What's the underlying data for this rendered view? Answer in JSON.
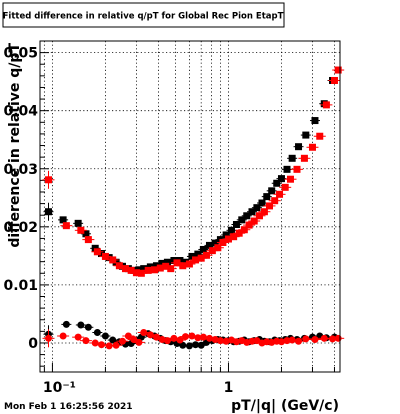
{
  "chart_data": {
    "type": "scatter",
    "title": "Fitted difference in relative q/pT for Global Rec Pion EtapT",
    "xlabel": "pT/|q| (GeV/c)",
    "ylabel": "difference in relative q/pT",
    "xscale": "log",
    "xlim": [
      0.085,
      4.3
    ],
    "ylim": [
      -0.005,
      0.052
    ],
    "grid": true,
    "x_tick_labels": [
      "10⁻¹",
      "1"
    ],
    "x_tick_values": [
      0.1,
      1
    ],
    "y_tick_labels": [
      "0",
      "0.01",
      "0.02",
      "0.03",
      "0.04",
      "0.05"
    ],
    "y_tick_values": [
      0,
      0.01,
      0.02,
      0.03,
      0.04,
      0.05
    ],
    "series": [
      {
        "color": "#000000",
        "marker": "square",
        "x": [
          0.095,
          0.115,
          0.14,
          0.155,
          0.175,
          0.19,
          0.21,
          0.23,
          0.25,
          0.27,
          0.29,
          0.31,
          0.33,
          0.36,
          0.39,
          0.42,
          0.45,
          0.49,
          0.53,
          0.57,
          0.62,
          0.67,
          0.72,
          0.78,
          0.84,
          0.9,
          0.97,
          1.04,
          1.11,
          1.19,
          1.27,
          1.36,
          1.45,
          1.55,
          1.65,
          1.76,
          1.88,
          2.0,
          2.15,
          2.3,
          2.5,
          2.75,
          3.1,
          3.5,
          3.9
        ],
        "y": [
          0.0226,
          0.0212,
          0.0206,
          0.0188,
          0.0163,
          0.0154,
          0.0147,
          0.0139,
          0.0132,
          0.0128,
          0.0125,
          0.0126,
          0.0128,
          0.0131,
          0.0133,
          0.0137,
          0.0139,
          0.0142,
          0.0142,
          0.0139,
          0.0149,
          0.0153,
          0.0161,
          0.0168,
          0.0172,
          0.0178,
          0.0186,
          0.0194,
          0.0204,
          0.0212,
          0.0219,
          0.0226,
          0.0233,
          0.0241,
          0.0252,
          0.0262,
          0.0275,
          0.0283,
          0.0299,
          0.0318,
          0.0338,
          0.0358,
          0.0383,
          0.0412,
          0.0452
        ]
      },
      {
        "color": "#ff0000",
        "marker": "square",
        "x": [
          0.095,
          0.12,
          0.145,
          0.16,
          0.18,
          0.2,
          0.22,
          0.24,
          0.26,
          0.28,
          0.3,
          0.32,
          0.35,
          0.38,
          0.41,
          0.44,
          0.47,
          0.51,
          0.55,
          0.6,
          0.65,
          0.7,
          0.75,
          0.81,
          0.87,
          0.93,
          1.0,
          1.07,
          1.15,
          1.23,
          1.31,
          1.4,
          1.5,
          1.6,
          1.71,
          1.83,
          1.95,
          2.1,
          2.25,
          2.45,
          2.7,
          3.0,
          3.3,
          3.6,
          4.0,
          4.2
        ],
        "y": [
          0.0281,
          0.0202,
          0.0194,
          0.0178,
          0.0157,
          0.0149,
          0.0143,
          0.0133,
          0.0128,
          0.0125,
          0.0121,
          0.012,
          0.0125,
          0.0126,
          0.0129,
          0.0132,
          0.0128,
          0.0138,
          0.0133,
          0.0136,
          0.0143,
          0.0146,
          0.0151,
          0.0159,
          0.0164,
          0.0173,
          0.0179,
          0.0183,
          0.0189,
          0.0195,
          0.0203,
          0.021,
          0.0219,
          0.0226,
          0.0236,
          0.0245,
          0.0256,
          0.0268,
          0.0282,
          0.0299,
          0.0318,
          0.0337,
          0.0356,
          0.041,
          0.0452,
          0.047
        ]
      },
      {
        "color": "#000000",
        "marker": "circle",
        "x": [
          0.095,
          0.12,
          0.145,
          0.16,
          0.18,
          0.2,
          0.22,
          0.24,
          0.26,
          0.28,
          0.3,
          0.32,
          0.35,
          0.38,
          0.41,
          0.44,
          0.47,
          0.51,
          0.55,
          0.6,
          0.65,
          0.7,
          0.75,
          0.81,
          0.87,
          0.93,
          1.0,
          1.07,
          1.15,
          1.23,
          1.31,
          1.4,
          1.5,
          1.6,
          1.71,
          1.83,
          1.95,
          2.1,
          2.25,
          2.45,
          2.7,
          3.0,
          3.3,
          3.6,
          4.0
        ],
        "y": [
          0.0015,
          0.0032,
          0.0031,
          0.0027,
          0.0018,
          0.0012,
          0.0005,
          0.0002,
          -0.0002,
          -0.0001,
          0.0005,
          0.001,
          0.0016,
          0.0012,
          0.0008,
          0.0004,
          0.0002,
          -0.0001,
          -0.0004,
          -0.0005,
          -0.0003,
          -0.0004,
          0.0001,
          0.0004,
          0.0006,
          0.0005,
          0.0004,
          0.0002,
          0.0003,
          0.0005,
          0.0002,
          0.0004,
          0.0006,
          0.0003,
          0.0002,
          0.0005,
          0.0004,
          0.0006,
          0.0008,
          0.0006,
          0.0008,
          0.001,
          0.0012,
          0.0009,
          0.001
        ]
      },
      {
        "color": "#ff0000",
        "marker": "circle",
        "x": [
          0.095,
          0.115,
          0.14,
          0.155,
          0.175,
          0.19,
          0.21,
          0.23,
          0.25,
          0.27,
          0.29,
          0.31,
          0.33,
          0.36,
          0.39,
          0.42,
          0.45,
          0.49,
          0.53,
          0.57,
          0.62,
          0.67,
          0.72,
          0.78,
          0.84,
          0.9,
          0.97,
          1.04,
          1.11,
          1.19,
          1.27,
          1.36,
          1.45,
          1.55,
          1.65,
          1.76,
          1.88,
          2.0,
          2.15,
          2.3,
          2.5,
          2.75,
          3.1,
          3.5,
          3.9,
          4.2
        ],
        "y": [
          0.0008,
          0.0012,
          0.001,
          0.0004,
          0.0,
          -0.0003,
          -0.0005,
          -0.0004,
          0.0003,
          0.0012,
          0.0006,
          0.0001,
          0.0018,
          0.0014,
          0.001,
          0.0006,
          0.0004,
          0.0008,
          0.0005,
          0.0011,
          0.0012,
          0.0009,
          0.001,
          0.0008,
          0.0006,
          0.0004,
          0.0003,
          0.0005,
          0.0002,
          0.0004,
          0.0001,
          0.0003,
          0.0004,
          0.0,
          0.0002,
          0.0001,
          0.0003,
          0.0002,
          0.0004,
          0.0005,
          0.0003,
          0.0007,
          0.0006,
          0.0008,
          0.0007,
          0.0008
        ]
      }
    ]
  },
  "footer": {
    "timestamp": "Mon Feb  1 16:25:56 2021"
  }
}
